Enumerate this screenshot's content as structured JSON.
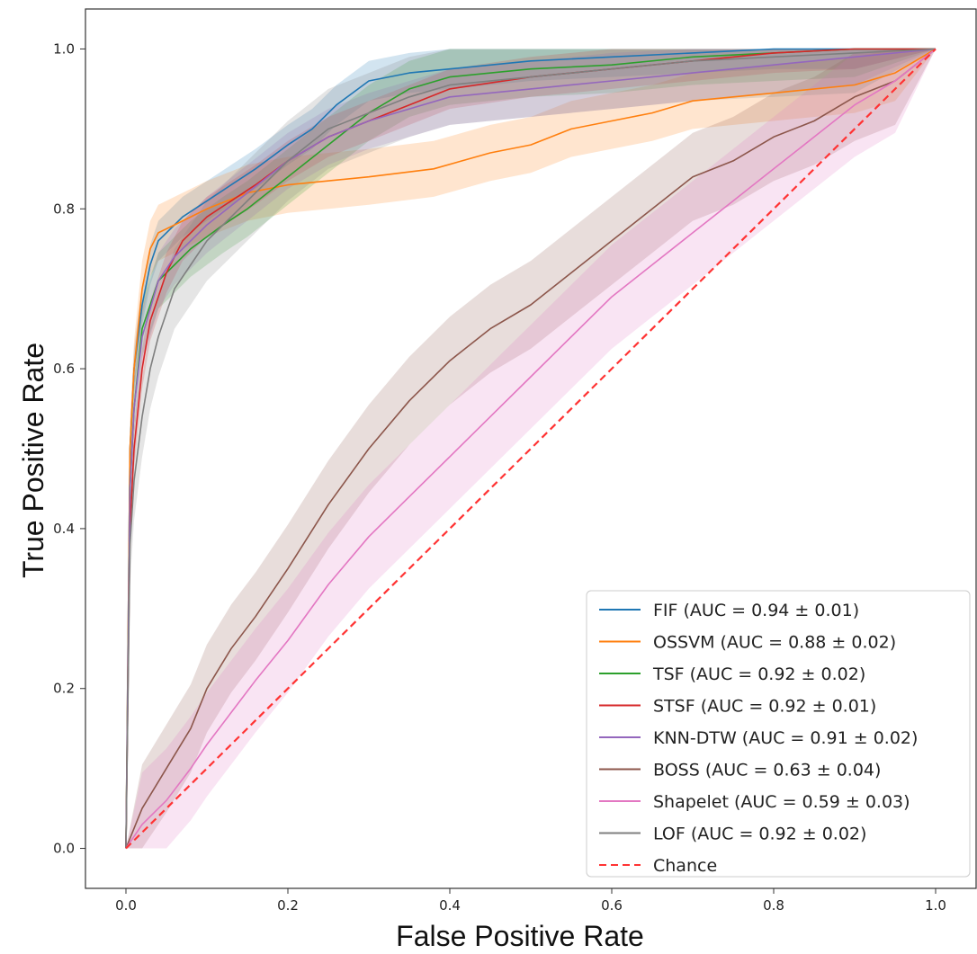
{
  "chart_data": {
    "type": "line",
    "title": "",
    "xlabel": "False Positive Rate",
    "ylabel": "True Positive Rate",
    "xlim": [
      -0.05,
      1.05
    ],
    "ylim": [
      -0.05,
      1.05
    ],
    "xticks": [
      "0.0",
      "0.2",
      "0.4",
      "0.6",
      "0.8",
      "1.0"
    ],
    "yticks": [
      "0.0",
      "0.2",
      "0.4",
      "0.6",
      "0.8",
      "1.0"
    ],
    "grid": false,
    "legend_position": "lower-right",
    "series": [
      {
        "name": "FIF (AUC = 0.94 ± 0.01)",
        "color": "#1f77b4",
        "x": [
          0,
          0.005,
          0.01,
          0.02,
          0.03,
          0.04,
          0.05,
          0.07,
          0.1,
          0.13,
          0.16,
          0.2,
          0.23,
          0.26,
          0.3,
          0.35,
          0.4,
          0.5,
          0.6,
          0.7,
          0.8,
          0.9,
          1.0
        ],
        "y": [
          0,
          0.5,
          0.6,
          0.68,
          0.73,
          0.76,
          0.77,
          0.79,
          0.81,
          0.83,
          0.85,
          0.88,
          0.9,
          0.93,
          0.96,
          0.97,
          0.975,
          0.985,
          0.99,
          0.995,
          1.0,
          1.0,
          1.0
        ],
        "band": 0.025
      },
      {
        "name": "OSSVM (AUC = 0.88 ± 0.02)",
        "color": "#ff7f0e",
        "x": [
          0,
          0.005,
          0.01,
          0.02,
          0.03,
          0.04,
          0.06,
          0.1,
          0.15,
          0.2,
          0.3,
          0.38,
          0.45,
          0.5,
          0.55,
          0.6,
          0.65,
          0.7,
          0.8,
          0.9,
          0.95,
          1.0
        ],
        "y": [
          0,
          0.5,
          0.6,
          0.7,
          0.75,
          0.77,
          0.78,
          0.8,
          0.82,
          0.83,
          0.84,
          0.85,
          0.87,
          0.88,
          0.9,
          0.91,
          0.92,
          0.935,
          0.945,
          0.955,
          0.97,
          1.0
        ],
        "band": 0.035
      },
      {
        "name": "TSF (AUC = 0.92 ± 0.02)",
        "color": "#2ca02c",
        "x": [
          0,
          0.005,
          0.01,
          0.02,
          0.04,
          0.06,
          0.08,
          0.1,
          0.12,
          0.15,
          0.2,
          0.25,
          0.3,
          0.35,
          0.4,
          0.5,
          0.6,
          0.7,
          0.8,
          0.9,
          1.0
        ],
        "y": [
          0,
          0.45,
          0.55,
          0.65,
          0.71,
          0.73,
          0.75,
          0.765,
          0.78,
          0.8,
          0.84,
          0.88,
          0.92,
          0.95,
          0.965,
          0.975,
          0.98,
          0.99,
          0.995,
          1.0,
          1.0
        ],
        "band": 0.035
      },
      {
        "name": "STSF (AUC = 0.92 ± 0.01)",
        "color": "#d62728",
        "x": [
          0,
          0.005,
          0.01,
          0.02,
          0.03,
          0.05,
          0.07,
          0.1,
          0.13,
          0.16,
          0.2,
          0.25,
          0.3,
          0.35,
          0.4,
          0.5,
          0.6,
          0.7,
          0.8,
          0.9,
          1.0
        ],
        "y": [
          0,
          0.4,
          0.5,
          0.6,
          0.66,
          0.72,
          0.76,
          0.79,
          0.81,
          0.83,
          0.86,
          0.89,
          0.91,
          0.93,
          0.95,
          0.965,
          0.975,
          0.985,
          0.995,
          1.0,
          1.0
        ],
        "band": 0.025
      },
      {
        "name": "KNN-DTW (AUC = 0.91 ± 0.02)",
        "color": "#9467bd",
        "x": [
          0,
          0.005,
          0.01,
          0.02,
          0.04,
          0.06,
          0.08,
          0.1,
          0.15,
          0.2,
          0.25,
          0.3,
          0.35,
          0.4,
          0.5,
          0.6,
          0.7,
          0.8,
          0.9,
          1.0
        ],
        "y": [
          0,
          0.45,
          0.55,
          0.64,
          0.71,
          0.74,
          0.76,
          0.78,
          0.82,
          0.86,
          0.89,
          0.91,
          0.925,
          0.94,
          0.95,
          0.96,
          0.97,
          0.98,
          0.99,
          1.0
        ],
        "band": 0.035
      },
      {
        "name": "BOSS (AUC = 0.63 ± 0.04)",
        "color": "#8c564b",
        "x": [
          0,
          0.02,
          0.05,
          0.08,
          0.1,
          0.13,
          0.16,
          0.2,
          0.25,
          0.3,
          0.35,
          0.4,
          0.45,
          0.5,
          0.55,
          0.6,
          0.65,
          0.7,
          0.75,
          0.8,
          0.85,
          0.9,
          0.95,
          1.0
        ],
        "y": [
          0,
          0.05,
          0.1,
          0.15,
          0.2,
          0.25,
          0.29,
          0.35,
          0.43,
          0.5,
          0.56,
          0.61,
          0.65,
          0.68,
          0.72,
          0.76,
          0.8,
          0.84,
          0.86,
          0.89,
          0.91,
          0.94,
          0.96,
          1.0
        ],
        "band": 0.055
      },
      {
        "name": "Shapelet (AUC = 0.59 ± 0.03)",
        "color": "#e377c2",
        "x": [
          0,
          0.02,
          0.05,
          0.08,
          0.1,
          0.13,
          0.16,
          0.2,
          0.25,
          0.3,
          0.35,
          0.4,
          0.45,
          0.5,
          0.55,
          0.6,
          0.65,
          0.7,
          0.75,
          0.8,
          0.85,
          0.9,
          0.95,
          1.0
        ],
        "y": [
          0,
          0.03,
          0.06,
          0.1,
          0.13,
          0.17,
          0.21,
          0.26,
          0.33,
          0.39,
          0.44,
          0.49,
          0.54,
          0.59,
          0.64,
          0.69,
          0.73,
          0.77,
          0.81,
          0.85,
          0.89,
          0.93,
          0.96,
          1.0
        ],
        "band": 0.065
      },
      {
        "name": "LOF (AUC = 0.92 ± 0.02)",
        "color": "#7f7f7f",
        "x": [
          0,
          0.005,
          0.01,
          0.02,
          0.03,
          0.04,
          0.05,
          0.06,
          0.08,
          0.1,
          0.13,
          0.16,
          0.2,
          0.25,
          0.3,
          0.35,
          0.4,
          0.5,
          0.6,
          0.7,
          0.8,
          0.9,
          1.0
        ],
        "y": [
          0,
          0.38,
          0.46,
          0.54,
          0.6,
          0.64,
          0.67,
          0.7,
          0.73,
          0.76,
          0.79,
          0.82,
          0.86,
          0.9,
          0.92,
          0.94,
          0.955,
          0.965,
          0.975,
          0.985,
          0.99,
          0.995,
          1.0
        ],
        "band": 0.05
      },
      {
        "name": "Chance",
        "color": "#ff3333",
        "dashed": true,
        "x": [
          0,
          1
        ],
        "y": [
          0,
          1
        ]
      }
    ]
  }
}
